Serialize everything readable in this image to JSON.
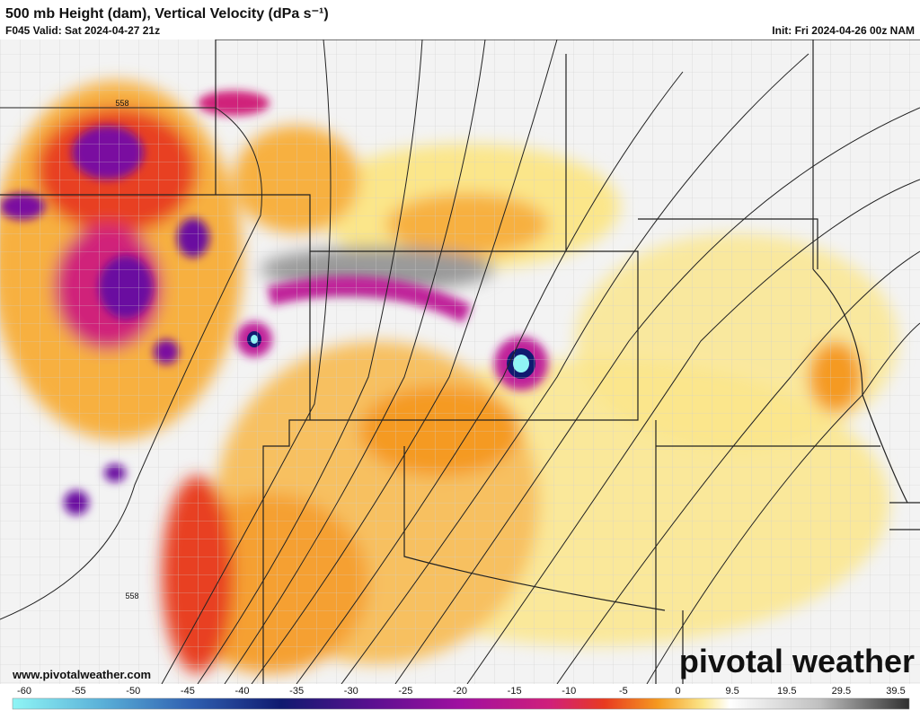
{
  "header": {
    "title": "500 mb Height (dam), Vertical Velocity (dPa s⁻¹)",
    "valid": "F045 Valid: Sat 2024-04-27 21z",
    "init": "Init: Fri 2024-04-26 00z NAM"
  },
  "map": {
    "contour_labels": [
      "558",
      "558"
    ],
    "url": "www.pivotalweather.com",
    "logo": "pivotal weather"
  },
  "colorbar": {
    "ticks": [
      -60,
      -55,
      -50,
      -45,
      -40,
      -35,
      -30,
      -25,
      -20,
      -15,
      -10,
      -5,
      0,
      9.5,
      19.5,
      29.5,
      39.5
    ]
  }
}
